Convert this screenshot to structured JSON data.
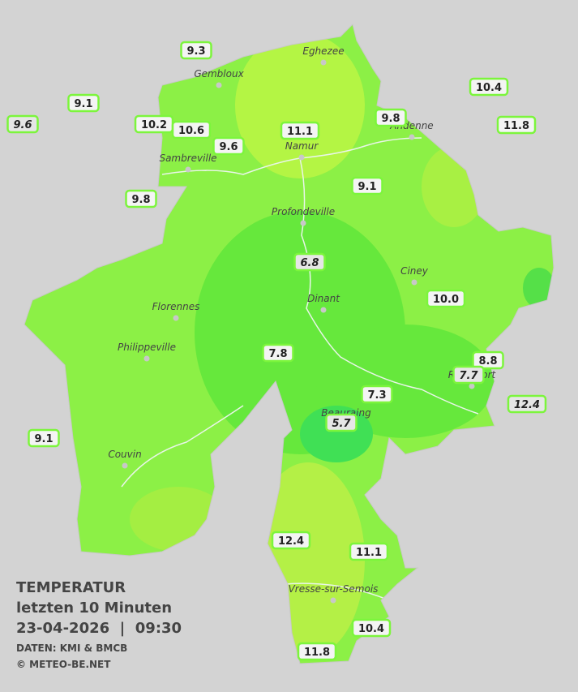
{
  "map": {
    "title": "TEMPERATUR",
    "subtitle": "letzten 10 Minuten",
    "timestamp": "23-04-2026  |  09:30",
    "source": "DATEN: KMI & BMCB",
    "credit": "© METEO-BE.NET",
    "cities": [
      "Eghezee",
      "Gembloux",
      "Andenne",
      "Namur",
      "Sambreville",
      "Profondeville",
      "Ciney",
      "Dinant",
      "Florennes",
      "Philippeville",
      "Rochefort",
      "Beauraing",
      "Couvin",
      "Vresse-sur-Semois"
    ],
    "stations": [
      {
        "label": "9.3",
        "italic": false
      },
      {
        "label": "9.1",
        "italic": false
      },
      {
        "label": "9.6",
        "italic": true
      },
      {
        "label": "10.2",
        "italic": false
      },
      {
        "label": "10.6",
        "italic": false
      },
      {
        "label": "9.6",
        "italic": false
      },
      {
        "label": "11.1",
        "italic": false
      },
      {
        "label": "9.8",
        "italic": false
      },
      {
        "label": "10.4",
        "italic": false
      },
      {
        "label": "11.8",
        "italic": false
      },
      {
        "label": "9.8",
        "italic": false
      },
      {
        "label": "9.1",
        "italic": false
      },
      {
        "label": "6.8",
        "italic": true
      },
      {
        "label": "10.0",
        "italic": false
      },
      {
        "label": "7.8",
        "italic": false
      },
      {
        "label": "8.8",
        "italic": false
      },
      {
        "label": "7.7",
        "italic": true
      },
      {
        "label": "7.3",
        "italic": false
      },
      {
        "label": "12.4",
        "italic": true
      },
      {
        "label": "5.7",
        "italic": true
      },
      {
        "label": "9.1",
        "italic": false
      },
      {
        "label": "12.4",
        "italic": false
      },
      {
        "label": "11.1",
        "italic": false
      },
      {
        "label": "10.4",
        "italic": false
      },
      {
        "label": "11.8",
        "italic": false
      }
    ]
  }
}
